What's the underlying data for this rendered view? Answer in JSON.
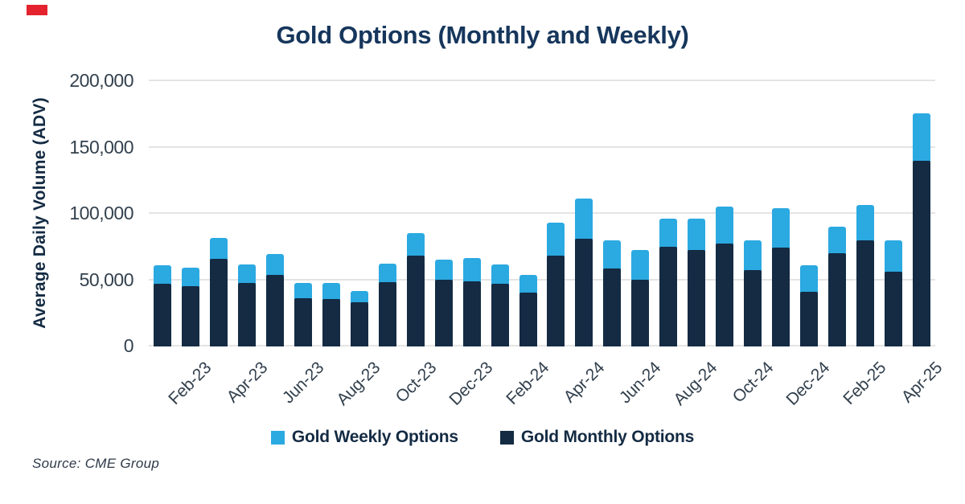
{
  "title": "Gold Options (Monthly and Weekly)",
  "source": "Source: CME Group",
  "accent_color": "#E4232E",
  "legend": {
    "weekly_label": "Gold Weekly Options",
    "monthly_label": "Gold Monthly Options"
  },
  "colors": {
    "weekly": "#2BA9E1",
    "monthly": "#142B43",
    "gridline": "#E4E4E4",
    "title_text": "#16365C",
    "tick_text": "#33414E"
  },
  "chart_data": {
    "type": "bar",
    "stacked": true,
    "title": "Gold Options (Monthly and Weekly)",
    "ylabel": "Average Daily Volume (ADV)",
    "xlabel": "",
    "ylim": [
      0,
      200000
    ],
    "yticks": [
      0,
      50000,
      100000,
      150000,
      200000
    ],
    "ytick_labels": [
      "0",
      "50,000",
      "100,000",
      "150,000",
      "200,000"
    ],
    "grid": "horizontal",
    "legend_position": "bottom",
    "categories": [
      "Jan-23",
      "Feb-23",
      "Mar-23",
      "Apr-23",
      "May-23",
      "Jun-23",
      "Jul-23",
      "Aug-23",
      "Sep-23",
      "Oct-23",
      "Nov-23",
      "Dec-23",
      "Jan-24",
      "Feb-24",
      "Mar-24",
      "Apr-24",
      "May-24",
      "Jun-24",
      "Jul-24",
      "Aug-24",
      "Sep-24",
      "Oct-24",
      "Nov-24",
      "Dec-24",
      "Jan-25",
      "Feb-25",
      "Mar-25",
      "Apr-25"
    ],
    "x_tick_labels_shown": [
      "Feb-23",
      "Apr-23",
      "Jun-23",
      "Aug-23",
      "Oct-23",
      "Dec-23",
      "Feb-24",
      "Apr-24",
      "Jun-24",
      "Aug-24",
      "Oct-24",
      "Dec-24",
      "Feb-25",
      "Apr-25"
    ],
    "series": [
      {
        "name": "Gold Monthly Options",
        "color": "#142B43",
        "values": [
          46500,
          45000,
          65500,
          47500,
          53500,
          36000,
          35000,
          32500,
          48000,
          68000,
          50000,
          48500,
          46500,
          40000,
          68000,
          80500,
          58000,
          50000,
          74500,
          72000,
          77000,
          57000,
          74000,
          40500,
          69500,
          79500,
          56000,
          139500
        ]
      },
      {
        "name": "Gold Weekly Options",
        "color": "#2BA9E1",
        "values": [
          14000,
          14000,
          15500,
          13500,
          15500,
          11500,
          12000,
          9000,
          14000,
          17000,
          15000,
          17500,
          14500,
          13500,
          25000,
          30500,
          21500,
          22000,
          21500,
          24000,
          28000,
          22500,
          29500,
          20000,
          20000,
          26500,
          23500,
          35500
        ]
      }
    ]
  }
}
